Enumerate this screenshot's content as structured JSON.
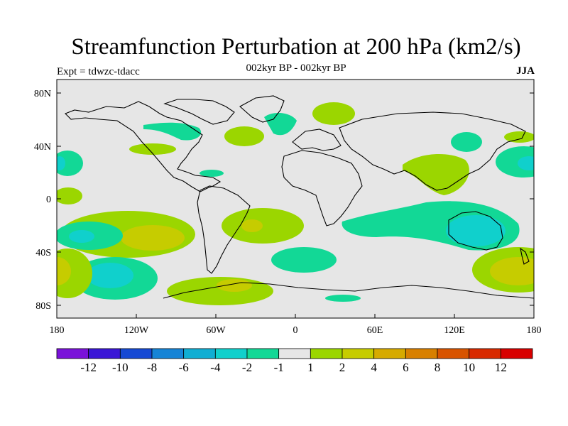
{
  "title": "Streamfunction Perturbation at 200 hPa (km2/s)",
  "subtitle": "002kyr BP - 002kyr BP",
  "left_label": "Expt = tdwzc-tdacc",
  "right_label": "JJA",
  "lat_ticks": [
    "80N",
    "40N",
    "0",
    "40S",
    "80S"
  ],
  "lon_ticks": [
    "180",
    "120W",
    "60W",
    "0",
    "60E",
    "120E",
    "180"
  ],
  "colorbar": {
    "colors": [
      "#7a12d9",
      "#3a16d6",
      "#1649d4",
      "#1684d6",
      "#10aed3",
      "#10d0cc",
      "#12d896",
      "#e6e6e6",
      "#9bd600",
      "#c6cc00",
      "#d6aa00",
      "#d88000",
      "#d85400",
      "#d82a00",
      "#d80000"
    ],
    "labels": [
      "-12",
      "-10",
      "-8",
      "-6",
      "-4",
      "-2",
      "-1",
      "1",
      "2",
      "4",
      "6",
      "8",
      "10",
      "12"
    ]
  },
  "chart_data": {
    "type": "map",
    "title": "Streamfunction Perturbation at 200 hPa (km2/s)",
    "subtitle": "002kyr BP - 002kyr BP",
    "variable": "streamfunction perturbation",
    "level": "200 hPa",
    "units": "km2/s",
    "season": "JJA",
    "lon_range": [
      -180,
      180
    ],
    "lat_range": [
      -90,
      90
    ],
    "contour_levels": [
      -12,
      -10,
      -8,
      -6,
      -4,
      -2,
      -1,
      1,
      2,
      4,
      6,
      8,
      10,
      12
    ],
    "features": [
      {
        "lon": -167,
        "lat": -33,
        "range": "-4 to -2"
      },
      {
        "lon": -138,
        "lat": -57,
        "range": "-4 to -2"
      },
      {
        "lon": -125,
        "lat": -30,
        "range": "2 to 4"
      },
      {
        "lon": -175,
        "lat": -50,
        "range": "2 to 4"
      },
      {
        "lon": -40,
        "lat": -72,
        "range": "1 to 4"
      },
      {
        "lon": -35,
        "lat": -18,
        "range": "1 to 4"
      },
      {
        "lon": 30,
        "lat": -42,
        "range": "-2 to -1"
      },
      {
        "lon": 120,
        "lat": -25,
        "range": "-4 to -1"
      },
      {
        "lon": 170,
        "lat": -48,
        "range": "2 to 4"
      },
      {
        "lon": 95,
        "lat": 25,
        "range": "1 to 2"
      },
      {
        "lon": 145,
        "lat": 40,
        "range": "-2 to -1"
      },
      {
        "lon": 175,
        "lat": 25,
        "range": "-4 to -1"
      },
      {
        "lon": -95,
        "lat": 52,
        "range": "-2 to -1"
      },
      {
        "lon": 35,
        "lat": 65,
        "range": "1 to 2"
      },
      {
        "lon": -40,
        "lat": 45,
        "range": "1 to 2"
      },
      {
        "lon": 0,
        "lat": 55,
        "range": "-2 to -1"
      }
    ]
  }
}
